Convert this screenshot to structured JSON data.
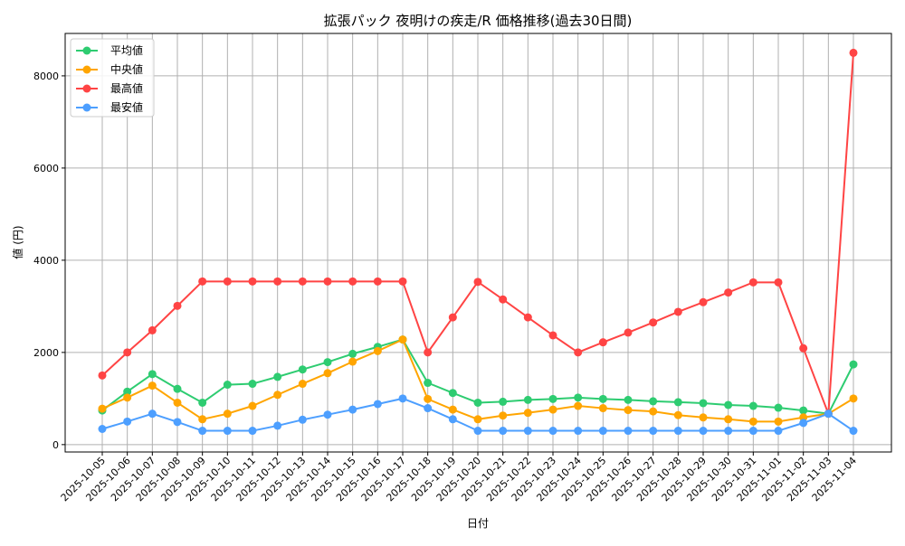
{
  "chart_data": {
    "type": "line",
    "title": "拡張パック 夜明けの疾走/R 価格推移(過去30日間)",
    "xlabel": "日付",
    "ylabel": "値 (円)",
    "ylim": [
      -160,
      8920
    ],
    "yticks": [
      0,
      2000,
      4000,
      6000,
      8000
    ],
    "grid": true,
    "legend": "top-left",
    "categories": [
      "2025-10-05",
      "2025-10-06",
      "2025-10-07",
      "2025-10-08",
      "2025-10-09",
      "2025-10-10",
      "2025-10-11",
      "2025-10-12",
      "2025-10-13",
      "2025-10-14",
      "2025-10-15",
      "2025-10-16",
      "2025-10-17",
      "2025-10-18",
      "2025-10-19",
      "2025-10-20",
      "2025-10-21",
      "2025-10-22",
      "2025-10-23",
      "2025-10-24",
      "2025-10-25",
      "2025-10-26",
      "2025-10-27",
      "2025-10-28",
      "2025-10-29",
      "2025-10-30",
      "2025-10-31",
      "2025-11-01",
      "2025-11-02",
      "2025-11-03",
      "2025-11-04"
    ],
    "series": [
      {
        "name": "平均値",
        "color": "#2ecc71",
        "values": [
          740,
          1150,
          1530,
          1210,
          910,
          1300,
          1320,
          1470,
          1630,
          1790,
          1970,
          2120,
          2280,
          1340,
          1120,
          910,
          930,
          970,
          990,
          1020,
          990,
          970,
          940,
          920,
          900,
          860,
          840,
          800,
          740,
          670,
          1740
        ]
      },
      {
        "name": "中央値",
        "color": "#ffa500",
        "values": [
          780,
          1020,
          1280,
          910,
          550,
          670,
          840,
          1080,
          1320,
          1550,
          1800,
          2030,
          2280,
          990,
          760,
          550,
          630,
          690,
          760,
          840,
          790,
          750,
          720,
          640,
          590,
          550,
          500,
          500,
          590,
          670,
          1000
        ]
      },
      {
        "name": "最高値",
        "color": "#ff4444",
        "values": [
          1500,
          2000,
          2480,
          3010,
          3540,
          3540,
          3540,
          3540,
          3540,
          3540,
          3540,
          3540,
          3540,
          2000,
          2760,
          3530,
          3150,
          2760,
          2370,
          2000,
          2220,
          2430,
          2650,
          2880,
          3090,
          3300,
          3520,
          3520,
          2090,
          670,
          8500
        ]
      },
      {
        "name": "最安値",
        "color": "#4d9fff",
        "values": [
          340,
          500,
          670,
          490,
          300,
          300,
          300,
          410,
          540,
          650,
          760,
          880,
          1000,
          790,
          550,
          300,
          300,
          300,
          300,
          300,
          300,
          300,
          300,
          300,
          300,
          300,
          300,
          300,
          470,
          670,
          300
        ]
      }
    ]
  }
}
